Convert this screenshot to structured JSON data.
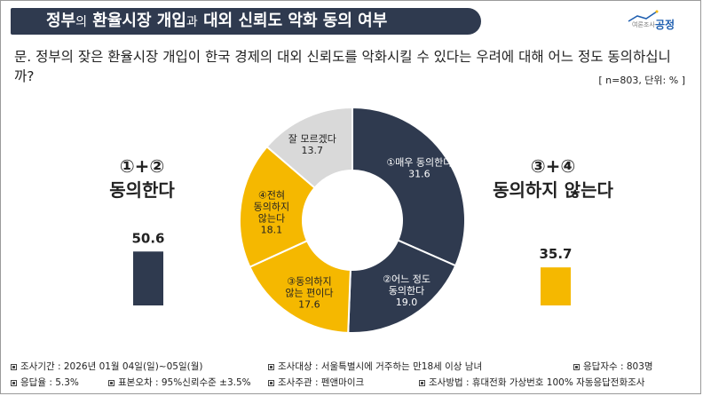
{
  "header": {
    "title_a": "정부",
    "title_b": "의",
    "title_c": " 환율시장 개입",
    "title_d": "과",
    "title_e": " 대외 신뢰도 악화 동의 여부",
    "logo_small": "여론조사",
    "logo_main": "공정"
  },
  "question": {
    "text": "문. 정부의 잦은 환율시장 개입이 한국 경제의 대외 신뢰도를 악화시킬 수 있다는 우려에 대해 어느 정도 동의하십니까?",
    "meta": "[ n=803, 단위: % ]"
  },
  "colors": {
    "navy": "#2f3a4f",
    "gold": "#f5b800",
    "gray": "#d9d9d9",
    "white": "#ffffff"
  },
  "chart_data": [
    {
      "type": "pie",
      "title": "",
      "slices": [
        {
          "label_num": "①",
          "label": "매우 동의한다",
          "value": 31.6,
          "color": "#2f3a4f"
        },
        {
          "label_num": "②",
          "label": "어느 정도 동의한다",
          "value": 19.0,
          "color": "#2f3a4f"
        },
        {
          "label_num": "③",
          "label": "동의하지 않는 편이다",
          "value": 17.6,
          "color": "#f5b800"
        },
        {
          "label_num": "④",
          "label": "전혀 동의하지 않는다",
          "value": 18.1,
          "color": "#f5b800"
        },
        {
          "label_num": "",
          "label": "잘 모르겠다",
          "value": 13.7,
          "color": "#d9d9d9"
        }
      ]
    },
    {
      "type": "bar",
      "categories": [
        "동의한다",
        "동의하지 않는다"
      ],
      "category_prefix": [
        "①+②",
        "③+④"
      ],
      "values": [
        50.6,
        35.7
      ],
      "colors": [
        "#2f3a4f",
        "#f5b800"
      ]
    }
  ],
  "footer": {
    "period": "조사기간 : 2026년 01월 04일(일)~05일(월)",
    "target": "조사대상 : 서울특별시에 거주하는 만18세 이상 남녀",
    "respondents": "응답자수 : 803명",
    "response_rate": "응답율 : 5.3%",
    "error": "표본오차 : 95%신뢰수준 ±3.5%",
    "organizer": "조사주관 : 펜앤마이크",
    "method": "조사방법 : 휴대전화 가상번호 100% 자동응답전화조사"
  }
}
